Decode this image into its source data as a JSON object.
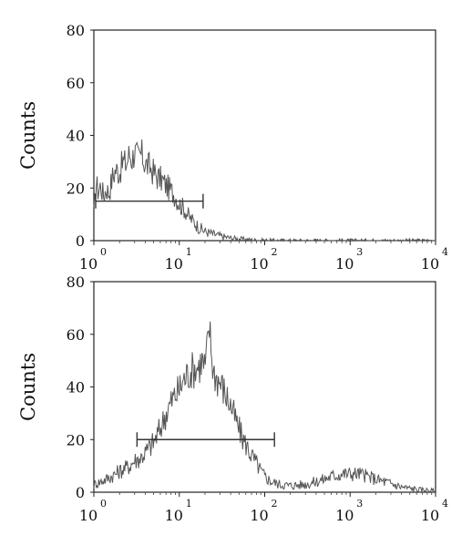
{
  "chart_data": [
    {
      "type": "line",
      "title": "",
      "ylabel": "Counts",
      "xlabel": "",
      "x_scale": "log",
      "xlim": [
        1,
        10000
      ],
      "ylim": [
        0,
        80
      ],
      "x_ticks": [
        {
          "base": "10",
          "exp": "0"
        },
        {
          "base": "10",
          "exp": "1"
        },
        {
          "base": "10",
          "exp": "2"
        },
        {
          "base": "10",
          "exp": "3"
        },
        {
          "base": "10",
          "exp": "4"
        }
      ],
      "y_ticks": [
        "0",
        "20",
        "40",
        "60",
        "80"
      ],
      "gate": {
        "x_start": 1.05,
        "x_end": 19,
        "y": 15
      },
      "series": [
        {
          "line_color": "#555555",
          "points": [
            [
              1.0,
              10
            ],
            [
              1.06,
              22
            ],
            [
              1.12,
              19
            ],
            [
              1.2,
              21
            ],
            [
              1.3,
              17
            ],
            [
              1.4,
              20
            ],
            [
              1.5,
              18
            ],
            [
              1.65,
              24
            ],
            [
              1.8,
              27
            ],
            [
              2.0,
              26
            ],
            [
              2.2,
              30
            ],
            [
              2.4,
              29
            ],
            [
              2.6,
              33
            ],
            [
              2.8,
              31
            ],
            [
              3.0,
              34
            ],
            [
              3.3,
              31
            ],
            [
              3.6,
              33
            ],
            [
              4.0,
              29
            ],
            [
              4.5,
              28
            ],
            [
              5.0,
              26
            ],
            [
              5.6,
              24
            ],
            [
              6.3,
              23
            ],
            [
              7.0,
              21
            ],
            [
              8.0,
              19
            ],
            [
              9.0,
              17
            ],
            [
              10.0,
              14
            ],
            [
              11.5,
              12
            ],
            [
              13.0,
              9
            ],
            [
              15.0,
              7
            ],
            [
              17.0,
              5
            ],
            [
              20.0,
              3.5
            ],
            [
              25.0,
              2.5
            ],
            [
              30.0,
              1.8
            ],
            [
              40.0,
              1.0
            ],
            [
              60.0,
              0.5
            ],
            [
              80.0,
              0.2
            ],
            [
              100.0,
              0.1
            ],
            [
              200.0,
              0
            ],
            [
              10000.0,
              0
            ]
          ]
        }
      ]
    },
    {
      "type": "line",
      "title": "",
      "ylabel": "Counts",
      "xlabel": "",
      "x_scale": "log",
      "xlim": [
        1,
        10000
      ],
      "ylim": [
        0,
        80
      ],
      "x_ticks": [
        {
          "base": "10",
          "exp": "0"
        },
        {
          "base": "10",
          "exp": "1"
        },
        {
          "base": "10",
          "exp": "2"
        },
        {
          "base": "10",
          "exp": "3"
        },
        {
          "base": "10",
          "exp": "4"
        }
      ],
      "y_ticks": [
        "0",
        "20",
        "40",
        "60",
        "80"
      ],
      "gate": {
        "x_start": 3.2,
        "x_end": 130,
        "y": 20
      },
      "series": [
        {
          "line_color": "#555555",
          "points": [
            [
              1.0,
              3
            ],
            [
              1.2,
              4
            ],
            [
              1.4,
              5
            ],
            [
              1.6,
              6
            ],
            [
              1.8,
              7
            ],
            [
              2.0,
              8
            ],
            [
              2.3,
              9
            ],
            [
              2.6,
              10
            ],
            [
              3.0,
              12
            ],
            [
              3.5,
              13
            ],
            [
              4.0,
              15
            ],
            [
              4.5,
              17
            ],
            [
              5.0,
              19
            ],
            [
              5.6,
              22
            ],
            [
              6.3,
              26
            ],
            [
              7.0,
              30
            ],
            [
              8.0,
              34
            ],
            [
              9.0,
              37
            ],
            [
              10.0,
              39
            ],
            [
              11.0,
              42
            ],
            [
              12.0,
              44
            ],
            [
              13.5,
              46
            ],
            [
              15.0,
              47
            ],
            [
              17.0,
              48
            ],
            [
              18.5,
              50
            ],
            [
              20.0,
              47
            ],
            [
              21.5,
              56
            ],
            [
              22.5,
              63
            ],
            [
              23.5,
              55
            ],
            [
              25.0,
              46
            ],
            [
              28.0,
              43
            ],
            [
              31.0,
              41
            ],
            [
              35.0,
              37
            ],
            [
              40.0,
              33
            ],
            [
              45.0,
              28
            ],
            [
              50.0,
              24
            ],
            [
              56.0,
              20
            ],
            [
              63.0,
              17
            ],
            [
              70.0,
              14
            ],
            [
              80.0,
              11
            ],
            [
              90.0,
              8
            ],
            [
              100.0,
              6
            ],
            [
              120.0,
              4
            ],
            [
              150.0,
              3
            ],
            [
              200.0,
              2.5
            ],
            [
              300.0,
              3
            ],
            [
              400.0,
              4
            ],
            [
              500.0,
              5
            ],
            [
              600.0,
              6
            ],
            [
              800.0,
              7
            ],
            [
              1000.0,
              7
            ],
            [
              1300.0,
              7
            ],
            [
              1600.0,
              6
            ],
            [
              2000.0,
              5
            ],
            [
              2500.0,
              4
            ],
            [
              3200.0,
              3
            ],
            [
              4000.0,
              2
            ],
            [
              5000.0,
              1.5
            ],
            [
              6300.0,
              1
            ],
            [
              8000.0,
              0.8
            ],
            [
              10000.0,
              0.5
            ]
          ]
        }
      ]
    }
  ]
}
